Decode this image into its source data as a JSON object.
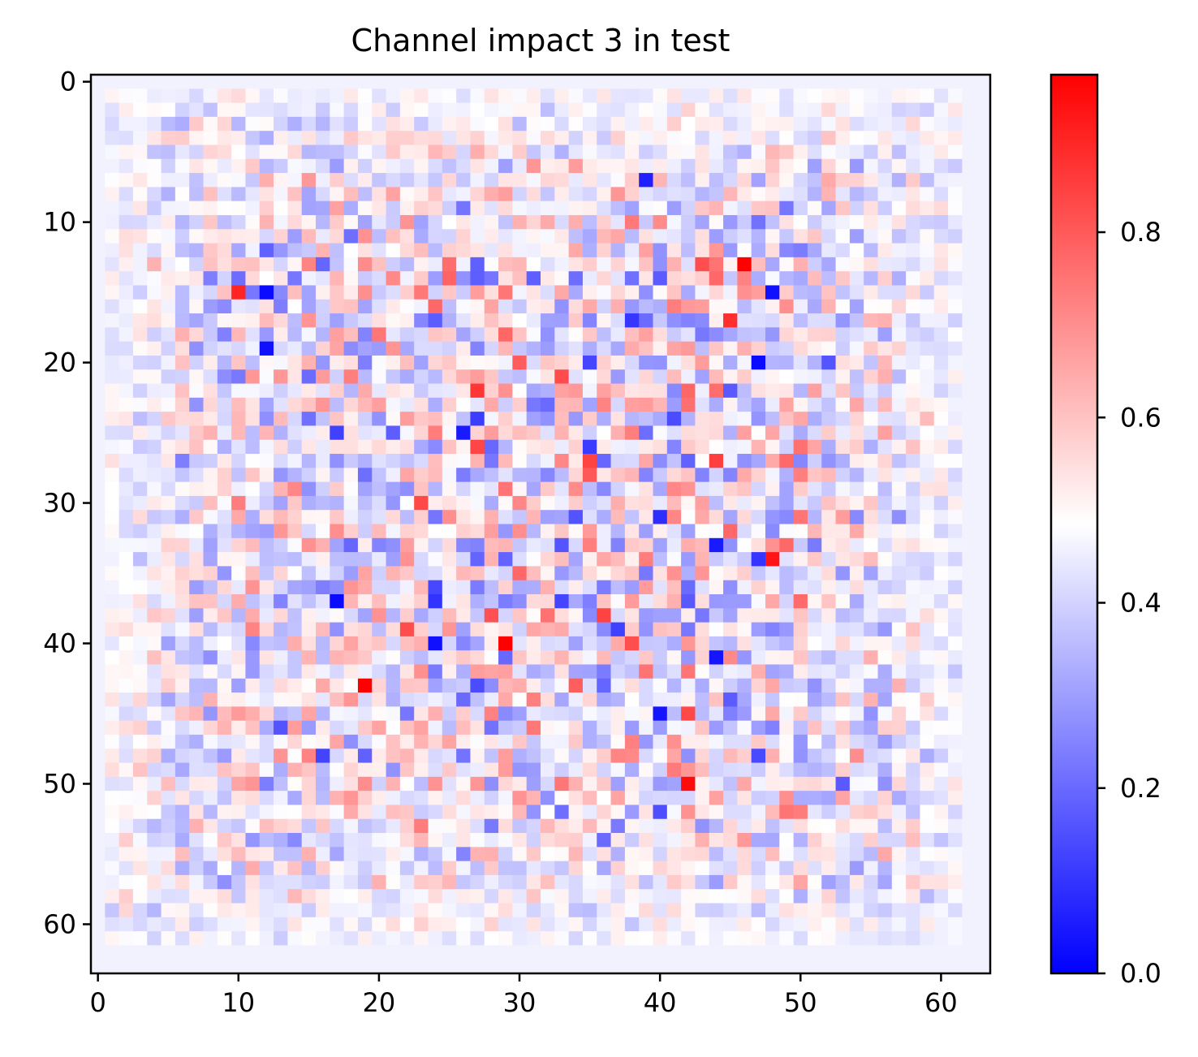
{
  "chart_data": {
    "type": "heatmap",
    "title": "Channel impact 3 in test",
    "rows": 64,
    "cols": 64,
    "xlim": [
      -0.5,
      63.5
    ],
    "ylim": [
      63.5,
      -0.5
    ],
    "x_ticks": [
      0,
      10,
      20,
      30,
      40,
      50,
      60
    ],
    "y_ticks": [
      0,
      10,
      20,
      30,
      40,
      50,
      60
    ],
    "colorbar": {
      "colormap": "bwr",
      "vmin": 0.0,
      "vmax": 0.97,
      "ticks": [
        0.0,
        0.2,
        0.4,
        0.6,
        0.8
      ],
      "tick_labels": [
        "0.0",
        "0.2",
        "0.4",
        "0.6",
        "0.8"
      ]
    },
    "active_region": {
      "row_range": [
        1,
        61
      ],
      "col_range": [
        1,
        61
      ]
    },
    "background_value": 0.46,
    "grid": false,
    "colors": {
      "low": "#0000ff",
      "mid": "#ffffff",
      "high": "#ff0000"
    },
    "notable_cells": [
      {
        "x": 46,
        "y": 13,
        "value": 0.97
      },
      {
        "x": 29,
        "y": 40,
        "value": 0.97
      },
      {
        "x": 19,
        "y": 43,
        "value": 0.97
      },
      {
        "x": 42,
        "y": 50,
        "value": 0.95
      },
      {
        "x": 48,
        "y": 34,
        "value": 0.93
      },
      {
        "x": 45,
        "y": 17,
        "value": 0.88
      },
      {
        "x": 10,
        "y": 15,
        "value": 0.9
      },
      {
        "x": 44,
        "y": 27,
        "value": 0.85
      },
      {
        "x": 12,
        "y": 15,
        "value": 0.02
      },
      {
        "x": 12,
        "y": 19,
        "value": 0.03
      },
      {
        "x": 47,
        "y": 20,
        "value": 0.02
      },
      {
        "x": 48,
        "y": 15,
        "value": 0.03
      },
      {
        "x": 17,
        "y": 37,
        "value": 0.02
      },
      {
        "x": 24,
        "y": 40,
        "value": 0.03
      },
      {
        "x": 40,
        "y": 45,
        "value": 0.04
      },
      {
        "x": 44,
        "y": 41,
        "value": 0.04
      },
      {
        "x": 26,
        "y": 25,
        "value": 0.05
      },
      {
        "x": 39,
        "y": 7,
        "value": 0.06
      },
      {
        "x": 44,
        "y": 33,
        "value": 0.05
      },
      {
        "x": 47,
        "y": 34,
        "value": 0.1
      }
    ]
  }
}
